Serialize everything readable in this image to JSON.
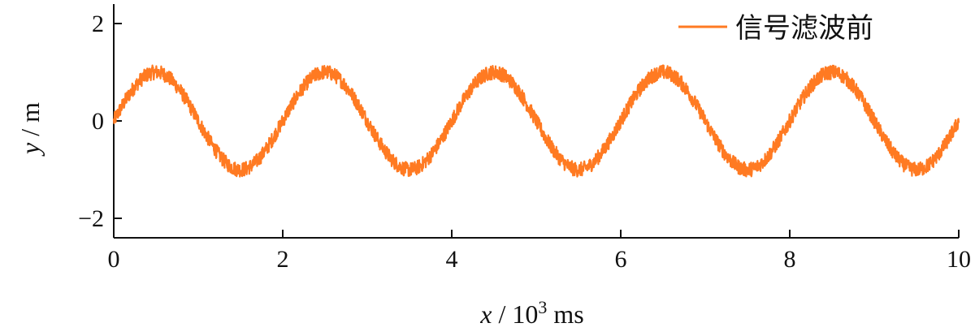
{
  "chart_data": {
    "type": "line",
    "xlabel": "x / 10³ ms",
    "ylabel": "y / m",
    "xlim": [
      0,
      10
    ],
    "ylim": [
      -2.4,
      2.4
    ],
    "x_ticks": [
      0,
      2,
      4,
      6,
      8,
      10
    ],
    "x_tick_labels": [
      "0",
      "2",
      "4",
      "6",
      "8",
      "10"
    ],
    "y_ticks": [
      2,
      0,
      -2
    ],
    "y_tick_labels": [
      "2",
      "0",
      "−2"
    ],
    "grid": false,
    "legend_position": "top-right",
    "series": [
      {
        "name": "信号滤波前",
        "color": "#ff7a22",
        "amplitude": 1.0,
        "period": 2.0,
        "noise_amplitude": 0.15,
        "x": [
          0,
          0.25,
          0.5,
          0.75,
          1.0,
          1.25,
          1.5,
          1.75,
          2.0,
          2.25,
          2.5,
          2.75,
          3.0,
          3.25,
          3.5,
          3.75,
          4.0,
          4.25,
          4.5,
          4.75,
          5.0,
          5.25,
          5.5,
          5.75,
          6.0,
          6.25,
          6.5,
          6.75,
          7.0,
          7.25,
          7.5,
          7.75,
          8.0,
          8.25,
          8.5,
          8.75,
          9.0,
          9.25,
          9.5,
          9.75,
          10.0
        ],
        "values": [
          0,
          0.71,
          1.0,
          0.71,
          0,
          -0.71,
          -1.0,
          -0.71,
          0,
          0.71,
          1.0,
          0.71,
          0,
          -0.71,
          -1.0,
          -0.71,
          0,
          0.71,
          1.0,
          0.71,
          0,
          -0.71,
          -1.0,
          -0.71,
          0,
          0.71,
          1.0,
          0.71,
          0,
          -0.71,
          -1.0,
          -0.71,
          0,
          0.71,
          1.0,
          0.71,
          0,
          -0.71,
          -1.0,
          -0.71,
          0
        ]
      }
    ]
  }
}
